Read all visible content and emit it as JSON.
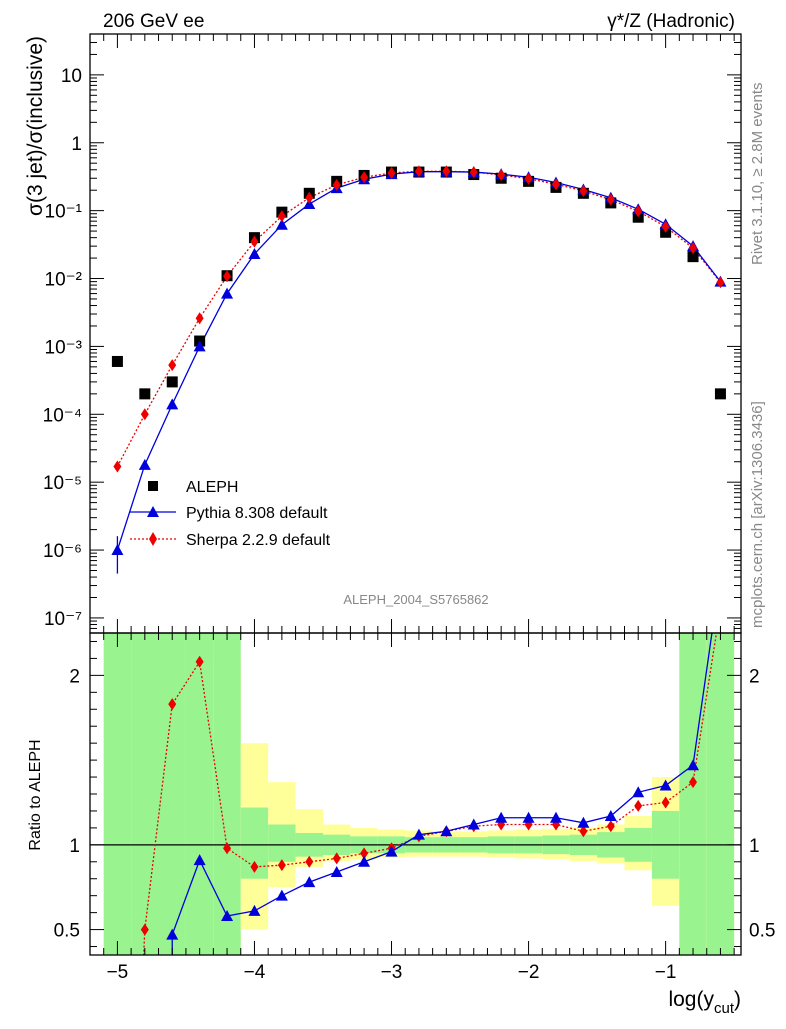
{
  "header": {
    "left": "206 GeV ee",
    "right": "γ*/Z (Hadronic)",
    "side_top": "Rivet 3.1.10, ≥ 2.8M events",
    "side_bottom": "mcplots.cern.ch [arXiv:1306.3436]",
    "analysis": "ALEPH_2004_S5765862"
  },
  "colors": {
    "data": "#000000",
    "pythia": "#0000dd",
    "sherpa": "#ee0000",
    "band_inner": "#99f38f",
    "band_outer": "#ffff99",
    "side_text": "#888888"
  },
  "chart_data": [
    {
      "type": "scatter",
      "panel": "main",
      "ylabel": "σ(3 jet)/σ(inclusive)",
      "xlabel": "log(y_cut)",
      "yscale": "log",
      "xlim": [
        -5.2,
        -0.45
      ],
      "ylim": [
        6e-08,
        40
      ],
      "ytick_labels": [
        "10⁻⁷",
        "10⁻⁶",
        "10⁻⁵",
        "10⁻⁴",
        "10⁻³",
        "10⁻²",
        "10⁻¹",
        "1",
        "10"
      ],
      "xtick_labels": [
        "−5",
        "−4",
        "−3",
        "−2",
        "−1"
      ],
      "legend_position": "lower-left",
      "x": [
        -5.0,
        -4.8,
        -4.6,
        -4.4,
        -4.2,
        -4.0,
        -3.8,
        -3.6,
        -3.4,
        -3.2,
        -3.0,
        -2.8,
        -2.6,
        -2.4,
        -2.2,
        -2.0,
        -1.8,
        -1.6,
        -1.4,
        -1.2,
        -1.0,
        -0.8,
        -0.6
      ],
      "series": [
        {
          "name": "ALEPH",
          "marker": "square",
          "values": [
            0.0006,
            0.0002,
            0.0003,
            0.0012,
            0.011,
            0.04,
            0.095,
            0.18,
            0.27,
            0.33,
            0.37,
            0.37,
            0.37,
            0.34,
            0.3,
            0.27,
            0.22,
            0.18,
            0.13,
            0.08,
            0.048,
            0.021,
            0.0002
          ]
        },
        {
          "name": "Pythia 8.308 default",
          "marker": "triangle",
          "line": "solid",
          "values": [
            1e-06,
            1.8e-05,
            0.00014,
            0.001,
            0.006,
            0.023,
            0.062,
            0.125,
            0.215,
            0.29,
            0.345,
            0.375,
            0.375,
            0.37,
            0.345,
            0.31,
            0.26,
            0.205,
            0.155,
            0.105,
            0.063,
            0.03,
            0.009
          ],
          "errors_low": [
            5.5e-07
          ],
          "errors_high": [
            6e-07
          ]
        },
        {
          "name": "Sherpa 2.2.9 default",
          "marker": "diamond",
          "line": "dotted",
          "values": [
            1.7e-05,
            0.0001,
            0.00053,
            0.0026,
            0.0108,
            0.035,
            0.083,
            0.155,
            0.24,
            0.31,
            0.36,
            0.38,
            0.38,
            0.37,
            0.335,
            0.295,
            0.245,
            0.195,
            0.145,
            0.098,
            0.058,
            0.028,
            0.0088
          ]
        }
      ]
    },
    {
      "type": "line",
      "panel": "ratio",
      "ylabel": "Ratio to ALEPH",
      "xlabel": "log(y_cut)",
      "xlim": [
        -5.2,
        -0.45
      ],
      "ylim": [
        0.35,
        2.25
      ],
      "ytick_labels": [
        "0.5",
        "1",
        "2"
      ],
      "xtick_labels": [
        "−5",
        "−4",
        "−3",
        "−2",
        "−1"
      ],
      "reference": 1.0,
      "x": [
        -5.0,
        -4.8,
        -4.6,
        -4.4,
        -4.2,
        -4.0,
        -3.8,
        -3.6,
        -3.4,
        -3.2,
        -3.0,
        -2.8,
        -2.6,
        -2.4,
        -2.2,
        -2.0,
        -1.8,
        -1.6,
        -1.4,
        -1.2,
        -1.0,
        -0.8,
        -0.6
      ],
      "bands": {
        "bin_edges": [
          -5.1,
          -4.9,
          -4.7,
          -4.5,
          -4.3,
          -4.1,
          -3.9,
          -3.7,
          -3.5,
          -3.3,
          -3.1,
          -2.9,
          -2.7,
          -2.5,
          -2.3,
          -2.1,
          -1.9,
          -1.7,
          -1.5,
          -1.3,
          -1.1,
          -0.9,
          -0.7,
          -0.5
        ],
        "inner_low": [
          0.2,
          0.2,
          0.2,
          0.2,
          0.2,
          0.8,
          0.9,
          0.93,
          0.94,
          0.95,
          0.95,
          0.955,
          0.955,
          0.955,
          0.95,
          0.95,
          0.945,
          0.94,
          0.925,
          0.9,
          0.8,
          0.2,
          0.2
        ],
        "inner_high": [
          3.0,
          3.0,
          3.0,
          3.0,
          3.0,
          1.22,
          1.12,
          1.07,
          1.06,
          1.05,
          1.05,
          1.045,
          1.045,
          1.045,
          1.05,
          1.05,
          1.055,
          1.06,
          1.075,
          1.1,
          1.2,
          3.0,
          3.0
        ],
        "outer_low": [
          0.2,
          0.2,
          0.2,
          0.2,
          0.2,
          0.5,
          0.75,
          0.87,
          0.905,
          0.915,
          0.925,
          0.93,
          0.93,
          0.93,
          0.925,
          0.92,
          0.915,
          0.905,
          0.89,
          0.85,
          0.64,
          0.2,
          0.2
        ],
        "outer_high": [
          3.0,
          3.0,
          3.0,
          3.0,
          2.1,
          1.6,
          1.37,
          1.21,
          1.12,
          1.1,
          1.09,
          1.085,
          1.08,
          1.08,
          1.085,
          1.09,
          1.095,
          1.1,
          1.12,
          1.17,
          1.4,
          1.7,
          3.0
        ]
      },
      "series": [
        {
          "name": "Pythia 8.308 default",
          "values": [
            null,
            null,
            0.47,
            0.91,
            0.58,
            0.61,
            0.7,
            0.78,
            0.84,
            0.9,
            0.96,
            1.06,
            1.08,
            1.12,
            1.16,
            1.16,
            1.16,
            1.13,
            1.17,
            1.31,
            1.35,
            1.47,
            2.6
          ],
          "lower_tail_x": [
            -4.6,
            -4.6
          ]
        },
        {
          "name": "Sherpa 2.2.9 default",
          "values": [
            null,
            0.5,
            1.83,
            2.08,
            0.98,
            0.87,
            0.88,
            0.9,
            0.92,
            0.95,
            0.98,
            1.05,
            1.08,
            1.11,
            1.12,
            1.12,
            1.12,
            1.08,
            1.11,
            1.23,
            1.25,
            1.37,
            2.4
          ]
        }
      ]
    }
  ]
}
